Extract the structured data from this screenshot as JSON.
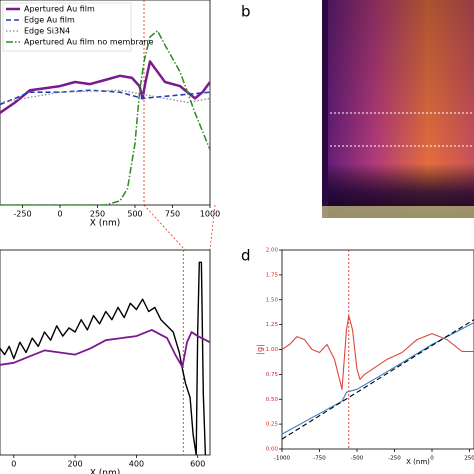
{
  "panels": [
    "b",
    "d"
  ],
  "chart_data": [
    {
      "type": "line",
      "xlabel": "X (nm)",
      "xlim": [
        -400,
        1000
      ],
      "ylim": [
        0,
        1
      ],
      "xticks": [
        -250,
        0,
        250,
        500,
        750,
        1000
      ],
      "vline": 560,
      "legend": "upper left",
      "series": [
        {
          "name": "Apertured Au film",
          "color": "#7b1a8f",
          "style": "solid",
          "width": 2.5,
          "x": [
            -400,
            -300,
            -200,
            -100,
            0,
            100,
            200,
            300,
            400,
            480,
            530,
            550,
            570,
            600,
            650,
            700,
            800,
            900,
            950,
            1000
          ],
          "values": [
            0.45,
            0.5,
            0.56,
            0.57,
            0.58,
            0.6,
            0.59,
            0.61,
            0.63,
            0.62,
            0.58,
            0.52,
            0.6,
            0.7,
            0.65,
            0.6,
            0.58,
            0.52,
            0.55,
            0.6
          ]
        },
        {
          "name": "Edge Au film",
          "color": "#1f3fbf",
          "style": "dashed",
          "width": 1.6,
          "x": [
            -400,
            -200,
            0,
            200,
            400,
            550,
            700,
            850,
            1000
          ],
          "values": [
            0.49,
            0.55,
            0.55,
            0.56,
            0.55,
            0.52,
            0.53,
            0.54,
            0.55
          ]
        },
        {
          "name": "Edge Si3N4",
          "color": "#888888",
          "style": "dotted",
          "width": 1.3,
          "x": [
            -400,
            0,
            400,
            550,
            700,
            850,
            1000
          ],
          "values": [
            0.5,
            0.55,
            0.56,
            0.54,
            0.52,
            0.5,
            0.52
          ]
        },
        {
          "name": "Apertured Au film no membrane",
          "color": "#2e8b22",
          "style": "dashdot",
          "width": 1.5,
          "x": [
            -400,
            300,
            400,
            450,
            500,
            530,
            560,
            600,
            650,
            700,
            800,
            900,
            1000
          ],
          "values": [
            0.0,
            0.0,
            0.02,
            0.08,
            0.3,
            0.55,
            0.7,
            0.82,
            0.85,
            0.78,
            0.65,
            0.45,
            0.27
          ]
        }
      ]
    },
    {
      "type": "line",
      "xlabel": "X (nm)",
      "xlim": [
        -45,
        640
      ],
      "ylim": [
        0,
        1
      ],
      "xticks": [
        0,
        200,
        400,
        600
      ],
      "vline": 553,
      "series": [
        {
          "color": "#000000",
          "style": "solid",
          "width": 1.4,
          "x": [
            -45,
            -30,
            -15,
            0,
            20,
            40,
            60,
            80,
            100,
            120,
            140,
            160,
            180,
            200,
            220,
            240,
            260,
            280,
            300,
            320,
            340,
            360,
            380,
            400,
            420,
            440,
            460,
            480,
            500,
            520,
            540,
            550,
            560,
            575,
            585,
            595,
            600,
            605,
            612,
            618,
            625
          ],
          "values": [
            0.52,
            0.49,
            0.53,
            0.47,
            0.55,
            0.5,
            0.57,
            0.53,
            0.6,
            0.56,
            0.63,
            0.58,
            0.62,
            0.6,
            0.66,
            0.61,
            0.68,
            0.64,
            0.7,
            0.66,
            0.72,
            0.67,
            0.74,
            0.71,
            0.76,
            0.7,
            0.72,
            0.66,
            0.63,
            0.6,
            0.5,
            0.42,
            0.35,
            0.28,
            0.1,
            0.0,
            0.6,
            0.94,
            0.94,
            0.3,
            0.0
          ]
        },
        {
          "color": "#7b1a8f",
          "style": "solid",
          "width": 1.8,
          "x": [
            -45,
            0,
            50,
            100,
            150,
            200,
            250,
            300,
            350,
            400,
            450,
            500,
            530,
            550,
            565,
            580,
            600,
            640
          ],
          "values": [
            0.44,
            0.45,
            0.48,
            0.51,
            0.5,
            0.49,
            0.52,
            0.56,
            0.57,
            0.58,
            0.61,
            0.57,
            0.48,
            0.43,
            0.55,
            0.6,
            0.58,
            0.55
          ]
        }
      ]
    },
    {
      "type": "line",
      "xlabel": "X (nm)",
      "ylabel": "|g|",
      "xlim": [
        -1000,
        280
      ],
      "ylim": [
        0,
        2
      ],
      "xticks": [
        -1000,
        -750,
        -500,
        -250,
        0,
        250
      ],
      "yticks": [
        {
          "value": 0,
          "label": "0.00"
        },
        {
          "value": 0.25,
          "label": "0.25"
        },
        {
          "value": 0.5,
          "label": "0.50"
        },
        {
          "value": 0.75,
          "label": "0.75"
        },
        {
          "value": 1,
          "label": "1.00"
        },
        {
          "value": 1.25,
          "label": "1.25"
        },
        {
          "value": 1.5,
          "label": "1.50"
        },
        {
          "value": 1.75,
          "label": "1.75"
        },
        {
          "value": 2,
          "label": "2.00"
        }
      ],
      "ytick_color": "#d62728",
      "vline": -555,
      "series": [
        {
          "color": "#e0443c",
          "style": "solid",
          "width": 1.1,
          "x": [
            -1000,
            -950,
            -900,
            -850,
            -800,
            -750,
            -700,
            -650,
            -600,
            -570,
            -555,
            -530,
            -500,
            -480,
            -450,
            -400,
            -300,
            -200,
            -100,
            0,
            100,
            200,
            280
          ],
          "values": [
            1.0,
            1.05,
            1.13,
            1.1,
            1.0,
            0.97,
            1.05,
            0.9,
            0.6,
            1.2,
            1.34,
            1.2,
            0.8,
            0.7,
            0.75,
            0.8,
            0.9,
            0.97,
            1.1,
            1.16,
            1.1,
            0.98,
            0.98
          ]
        },
        {
          "color": "#3a7fc1",
          "style": "solid",
          "width": 1.1,
          "x": [
            -1000,
            -600,
            -570,
            -550,
            -500,
            -250,
            0,
            280
          ],
          "values": [
            0.15,
            0.48,
            0.57,
            0.58,
            0.6,
            0.82,
            1.05,
            1.27
          ]
        },
        {
          "color": "#000000",
          "style": "dashed",
          "width": 1.1,
          "x": [
            -1000,
            -500,
            0,
            280
          ],
          "values": [
            0.1,
            0.57,
            1.04,
            1.3
          ]
        }
      ]
    }
  ]
}
